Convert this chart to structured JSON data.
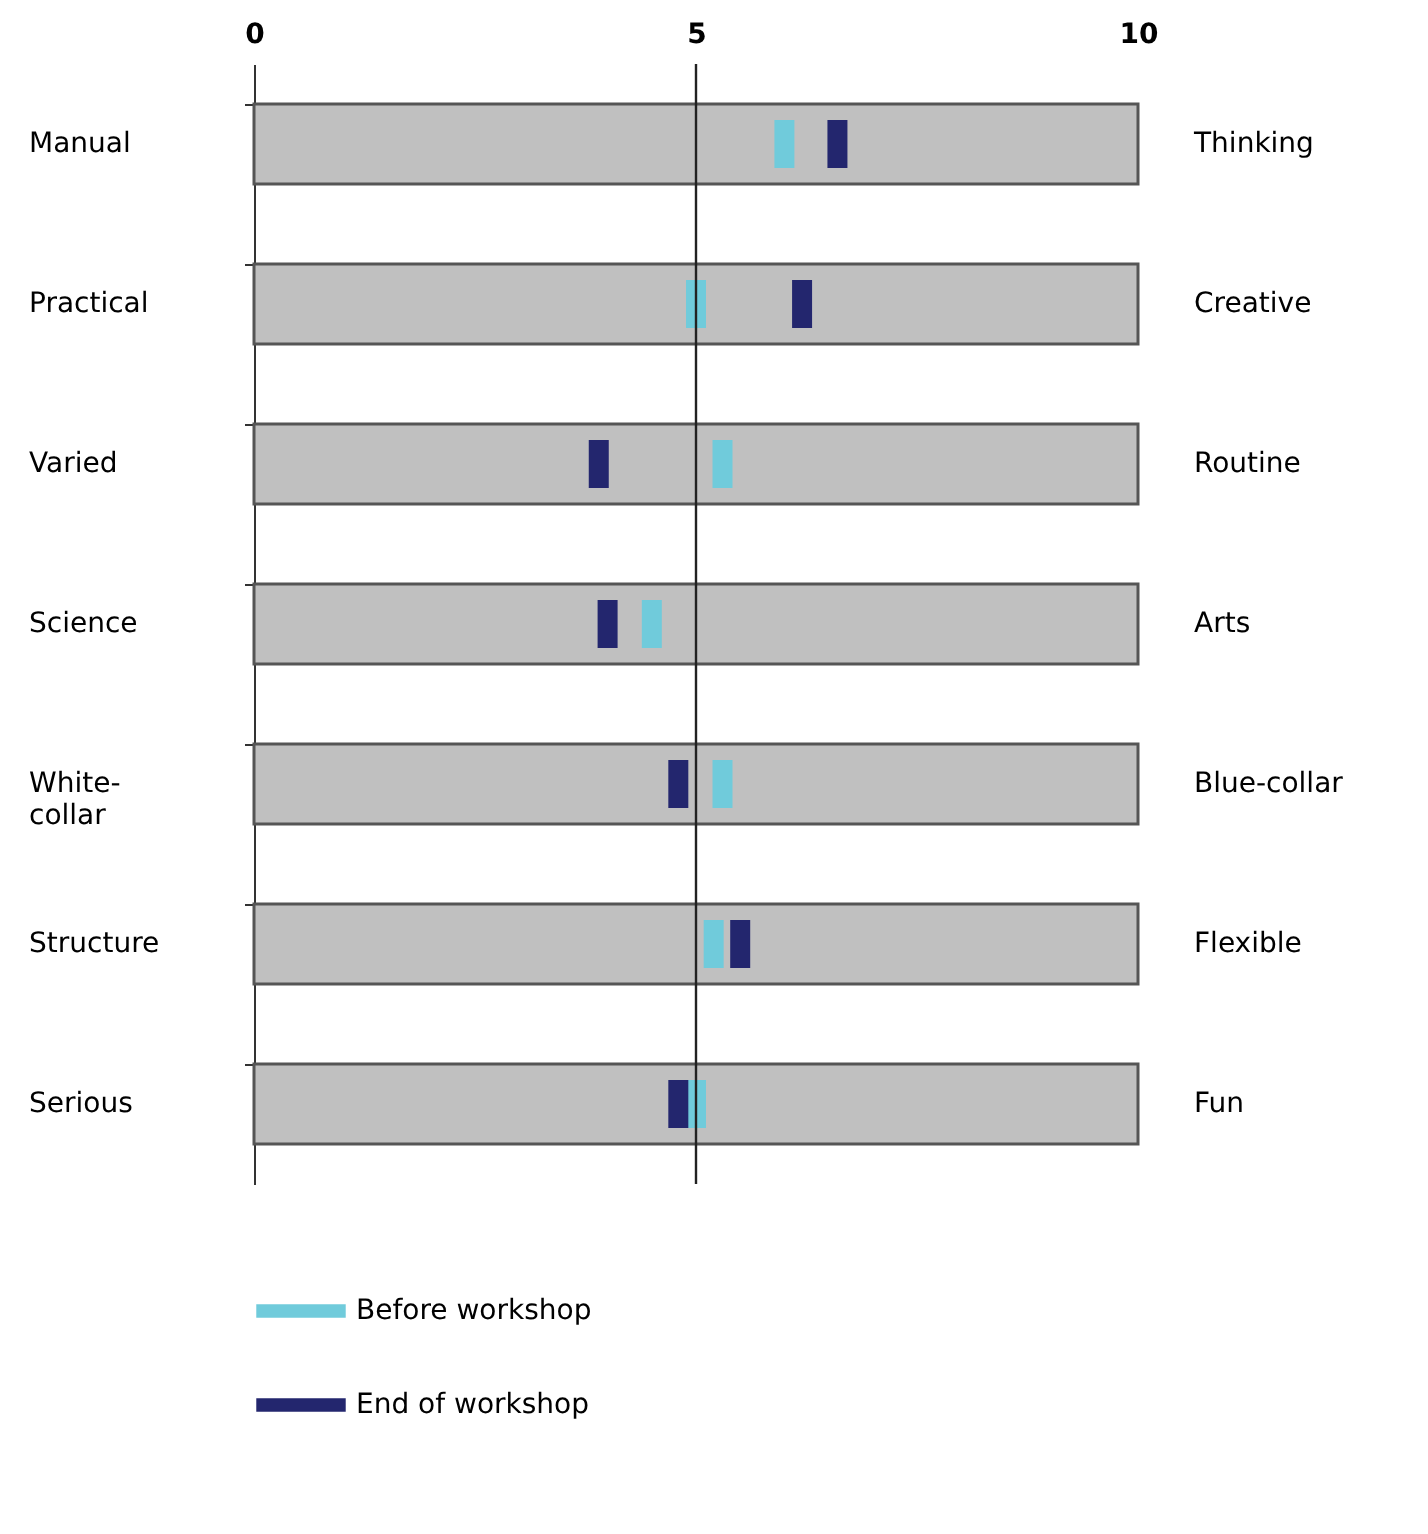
{
  "chart_data": {
    "type": "bar",
    "orientation": "horizontal",
    "categories": [
      "Manual",
      "Practical",
      "Varied",
      "Science",
      "White-collar",
      "Structure",
      "Serious"
    ],
    "y2_categories": [
      "Thinking",
      "Creative",
      "Routine",
      "Arts",
      "Blue-collar",
      "Flexible",
      "Fun"
    ],
    "xlim": [
      0,
      10
    ],
    "xticks": [
      0,
      5,
      10
    ],
    "series": [
      {
        "type": "bar",
        "color": "#c0c0c0",
        "values": [
          10,
          10,
          10,
          10,
          10,
          10,
          10
        ]
      },
      {
        "type": "scatter",
        "name": "Before workshop",
        "color": "#70cbdb",
        "values": [
          6.0,
          5.0,
          5.3,
          4.5,
          5.3,
          5.2,
          5.0
        ]
      },
      {
        "type": "scatter",
        "name": "End of workshop",
        "color": "#23266e",
        "values": [
          6.6,
          6.2,
          3.9,
          4.0,
          4.8,
          5.5,
          4.8
        ]
      }
    ],
    "ref_lines": [
      {
        "axis": "x",
        "value": 5
      }
    ],
    "legend": "bottom"
  }
}
